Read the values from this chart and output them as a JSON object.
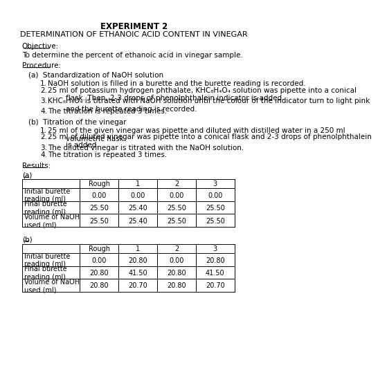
{
  "title1": "EXPERIMENT 2",
  "title2": "DETERMINATION OF ETHANOIC ACID CONTENT IN VINEGAR",
  "objective_label": "Objective:",
  "objective_text": "To determine the percent of ethanoic acid in vinegar sample.",
  "procedure_label": "Procedure:",
  "proc_a_header": "(a)  Standardization of NaOH solution",
  "proc_a_items": [
    "NaOH solution is filled in a burette and the burette reading is recorded.",
    "25 ml of potassium hydrogen phthalate, KHC₈H₄O₄ solution was pipette into a conical\n        flask. Then, 2-3 drops of phenolphthalein indicator is added.",
    "KHC₈H₄O₄ is titrated with NaOH solution until the colour of the indicator turn to light pink\n        and the burette reading is recorded.",
    "The titration is repeated 3 times."
  ],
  "proc_b_header": "(b)  Titration of the vinegar",
  "proc_b_items": [
    "25 ml of the given vinegar was pipette and diluted with distilled water in a 250 ml\n        volumetric flask.",
    "25 ml of diluted vinegar was pipette into a conical flask and 2-3 drops of phenolphthalein\n        is added.",
    "The diluted vinegar is titrated with the NaOH solution.",
    "The titration is repeated 3 times."
  ],
  "results_label": "Results:",
  "table_a_label": "(a)",
  "table_b_label": "(b)",
  "table_headers": [
    "",
    "Rough",
    "1",
    "2",
    "3"
  ],
  "table_a_rows": [
    [
      "Initial burette\nreading (ml)",
      "0.00",
      "0.00",
      "0.00",
      "0.00"
    ],
    [
      "Final burette\nreading (ml)",
      "25.50",
      "25.40",
      "25.50",
      "25.50"
    ],
    [
      "Volume of NaOH\nused (ml)",
      "25.50",
      "25.40",
      "25.50",
      "25.50"
    ]
  ],
  "table_b_rows": [
    [
      "Initial burette\nreading (ml)",
      "0.00",
      "20.80",
      "0.00",
      "20.80"
    ],
    [
      "Final burette\nreading (ml)",
      "20.80",
      "41.50",
      "20.80",
      "41.50"
    ],
    [
      "Volume of NaOH\nused (ml)",
      "20.80",
      "20.70",
      "20.80",
      "20.70"
    ]
  ],
  "bg_color": "#ffffff",
  "text_color": "#000000",
  "font_size_title": 8.5,
  "font_size_body": 7.5,
  "font_size_table": 7.0,
  "underline_lengths": {
    "objective": 0.115,
    "procedure": 0.118,
    "results": 0.103,
    "table_label": 0.035
  }
}
